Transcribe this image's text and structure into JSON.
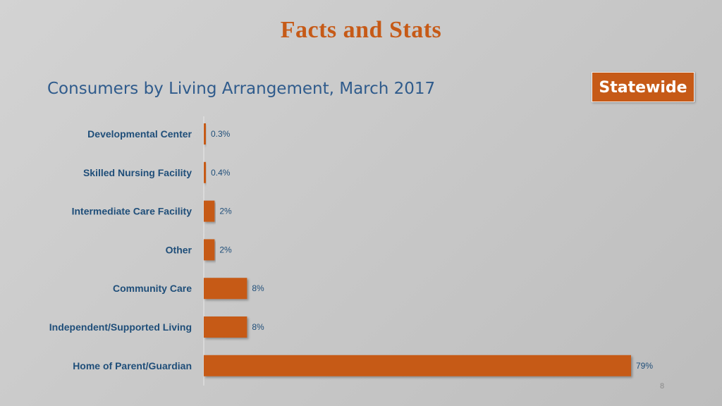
{
  "slide": {
    "title": "Facts and Stats",
    "badge": "Statewide",
    "page_number": "8"
  },
  "colors": {
    "accent": "#c65a17",
    "title_blue": "#2f5b8c",
    "label_blue": "#1f4e79"
  },
  "chart_data": {
    "type": "bar",
    "orientation": "horizontal",
    "title": "Consumers by Living Arrangement, March 2017",
    "categories": [
      "Developmental Center",
      "Skilled Nursing Facility",
      "Intermediate Care Facility",
      "Other",
      "Community Care",
      "Independent/Supported Living",
      "Home of Parent/Guardian"
    ],
    "values": [
      0.3,
      0.4,
      2,
      2,
      8,
      8,
      79
    ],
    "data_labels": [
      "0.3%",
      "0.4%",
      "2%",
      "2%",
      "8%",
      "8%",
      "79%"
    ],
    "xlim": [
      0,
      79
    ],
    "grid": false,
    "legend": "none"
  }
}
